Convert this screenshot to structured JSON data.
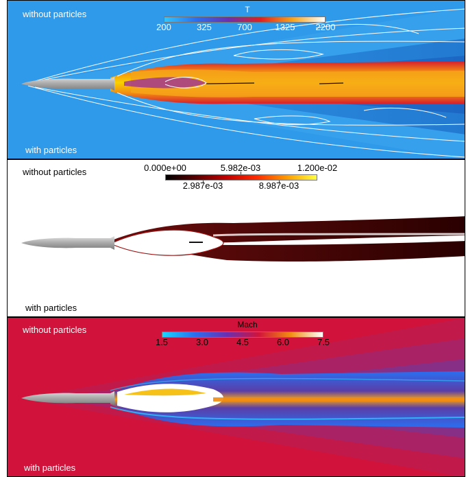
{
  "panels": [
    {
      "name": "temperature",
      "label_top": "without particles",
      "label_bottom": "with particles",
      "colorbar": {
        "title": "T",
        "ticks": [
          "200",
          "325",
          "700",
          "1325",
          "2200"
        ]
      }
    },
    {
      "name": "particle-fraction",
      "label_top": "without particles",
      "label_bottom": "with particles",
      "colorbar": {
        "title": "",
        "ticks_top": [
          "0.000e+00",
          "5.982e-03",
          "1.200e-02"
        ],
        "ticks_bottom": [
          "2.987e-03",
          "8.987e-03"
        ]
      }
    },
    {
      "name": "mach",
      "label_top": "without particles",
      "label_bottom": "with particles",
      "colorbar": {
        "title": "Mach",
        "ticks": [
          "1.5",
          "3.0",
          "4.5",
          "6.0",
          "7.5"
        ]
      }
    }
  ],
  "colors": {
    "temp_bg": "#2f9ae9",
    "temp_hot": "#f9d100",
    "particle_bg": "#ffffff",
    "particle_dark": "#3a0000",
    "mach_bg": "#d1133b",
    "mach_blue": "#2a6ff0",
    "vehicle": "#b9b9b9"
  }
}
